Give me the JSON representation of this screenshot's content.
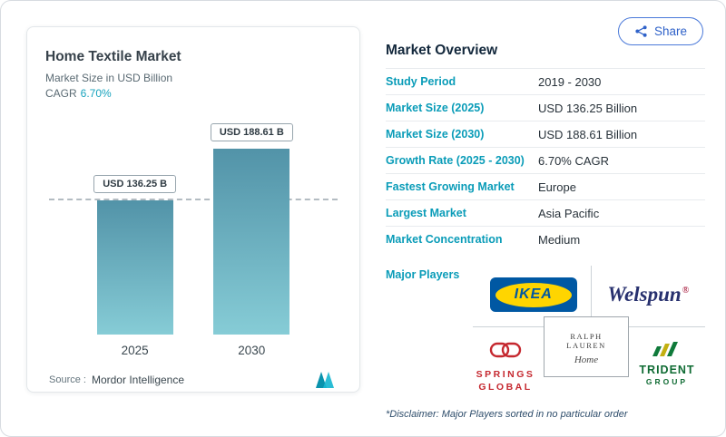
{
  "share_button": {
    "label": "Share"
  },
  "chart_card": {
    "title": "Home Textile Market",
    "subtitle": "Market Size in USD Billion",
    "cagr_label": "CAGR",
    "cagr_value": "6.70%",
    "source_label": "Source :",
    "source_name": "Mordor Intelligence"
  },
  "chart_data": {
    "type": "bar",
    "title": "Home Textile Market",
    "ylabel": "Market Size in USD Billion",
    "unit": "USD Billion",
    "categories": [
      "2025",
      "2030"
    ],
    "values": [
      136.25,
      188.61
    ],
    "bar_labels": [
      "USD 136.25 B",
      "USD 188.61 B"
    ],
    "cagr": "6.70%",
    "ylim": [
      0,
      200
    ],
    "reference_line_value": 136.25,
    "grid": false,
    "legend": false,
    "bar_gradient": [
      "#5293a8",
      "#86ccd6"
    ]
  },
  "colors": {
    "label_teal": "#0a9cb8",
    "share_blue": "#2f62c9",
    "ikea_blue": "#0058a3",
    "ikea_yellow": "#ffd500",
    "springs_red": "#c5282f",
    "trident_green": "#0f6b33",
    "welspun_navy": "#27306e"
  },
  "overview": {
    "title": "Market Overview",
    "rows": [
      {
        "label": "Study Period",
        "value": "2019 - 2030"
      },
      {
        "label": "Market Size (2025)",
        "value": "USD 136.25 Billion"
      },
      {
        "label": "Market Size (2030)",
        "value": "USD 188.61 Billion"
      },
      {
        "label": "Growth Rate (2025 - 2030)",
        "value": "6.70% CAGR"
      },
      {
        "label": "Fastest Growing Market",
        "value": "Europe"
      },
      {
        "label": "Largest Market",
        "value": "Asia Pacific"
      },
      {
        "label": "Market Concentration",
        "value": "Medium"
      }
    ],
    "major_players_label": "Major Players",
    "players": [
      {
        "name": "IKEA",
        "wordmark": "IKEA"
      },
      {
        "name": "Welspun",
        "wordmark": "Welspun",
        "mark": "®"
      },
      {
        "name": "Springs Global",
        "line1": "SPRINGS",
        "line2": "GLOBAL"
      },
      {
        "name": "Ralph Lauren",
        "line1": "RALPH LAUREN",
        "line2": "Home"
      },
      {
        "name": "Trident Group",
        "line1": "TRIDENT",
        "line2": "GROUP"
      }
    ],
    "disclaimer": "*Disclaimer: Major Players sorted in no particular order"
  }
}
